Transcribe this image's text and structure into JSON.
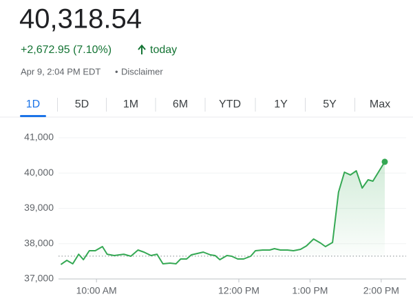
{
  "header": {
    "price": "40,318.54",
    "change": "+2,672.95 (7.10%)",
    "period": "today",
    "timestamp": "Apr 9, 2:04 PM EDT",
    "separator": "•",
    "disclaimer": "Disclaimer"
  },
  "tabs": [
    "1D",
    "5D",
    "1M",
    "6M",
    "YTD",
    "1Y",
    "5Y",
    "Max"
  ],
  "selected_tab": 0,
  "chart_data": {
    "type": "line",
    "color": "#34a853",
    "x": [
      570,
      575,
      580,
      585,
      589,
      594,
      599,
      605,
      609,
      615,
      623,
      629,
      635,
      640,
      646,
      651,
      656,
      662,
      667,
      671,
      676,
      680,
      685,
      690,
      696,
      700,
      704,
      710,
      714,
      719,
      724,
      730,
      734,
      740,
      746,
      750,
      755,
      761,
      766,
      772,
      777,
      783,
      789,
      793,
      799,
      804,
      809,
      814,
      819,
      824,
      829,
      833,
      843
    ],
    "values": [
      37410,
      37527,
      37430,
      37700,
      37546,
      37800,
      37800,
      37917,
      37700,
      37663,
      37700,
      37644,
      37820,
      37761,
      37663,
      37700,
      37430,
      37449,
      37430,
      37566,
      37566,
      37683,
      37722,
      37761,
      37683,
      37663,
      37546,
      37663,
      37644,
      37566,
      37566,
      37644,
      37800,
      37820,
      37820,
      37859,
      37820,
      37820,
      37800,
      37839,
      37937,
      38132,
      38015,
      37917,
      38034,
      39459,
      40024,
      39946,
      40063,
      39576,
      39810,
      39771,
      40318.54
    ],
    "previous_close": 37645.59,
    "xlim": [
      568,
      861
    ],
    "xticks": [
      {
        "value": 600,
        "label": "10:00 AM"
      },
      {
        "value": 720,
        "label": "12:00 PM"
      },
      {
        "value": 780,
        "label": "1:00 PM"
      },
      {
        "value": 840,
        "label": "2:00 PM"
      }
    ],
    "ylim": [
      37000,
      41000
    ],
    "yticks": [
      {
        "value": 37000,
        "label": "37,000"
      },
      {
        "value": 38000,
        "label": "38,000"
      },
      {
        "value": 39000,
        "label": "39,000"
      },
      {
        "value": 40000,
        "label": "40,000"
      },
      {
        "value": 41000,
        "label": "41,000"
      }
    ],
    "grid": true
  }
}
